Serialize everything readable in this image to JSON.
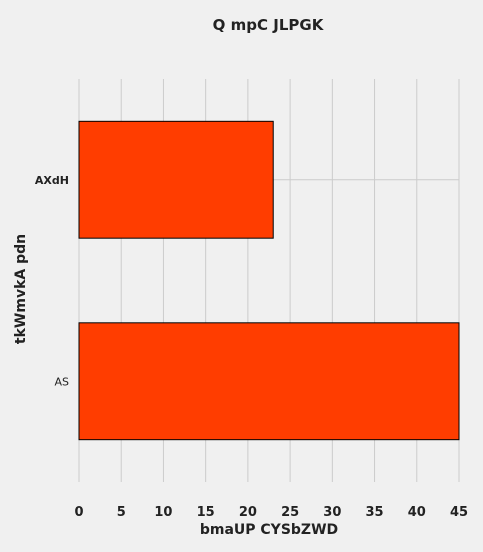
{
  "chart_data": {
    "type": "bar",
    "orientation": "horizontal",
    "title": "Q mpC JLPGK",
    "xlabel": "bmaUP CYSbZWD",
    "ylabel": "tkWmvkA pdn",
    "categories": [
      "AXdH",
      "AS"
    ],
    "values": [
      23,
      45
    ],
    "xlim": [
      0,
      45
    ],
    "xticks": [
      0,
      5,
      10,
      15,
      20,
      25,
      30,
      35,
      40,
      45
    ],
    "grid": true,
    "colors": {
      "bar": "#ff3d00",
      "background": "#f0f0f0",
      "grid": "#cbcbcb"
    }
  }
}
